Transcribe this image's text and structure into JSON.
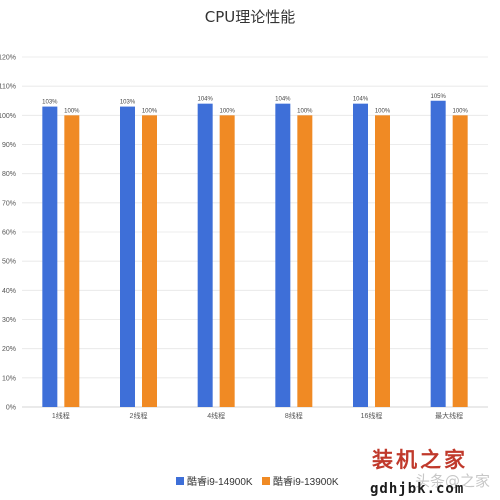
{
  "chart_data": {
    "type": "bar",
    "title": "CPU理论性能",
    "categories": [
      "1线程",
      "2线程",
      "4线程",
      "8线程",
      "16线程",
      "最大线程"
    ],
    "series": [
      {
        "name": "酷睿i9-14900K",
        "values": [
          103,
          103,
          104,
          104,
          104,
          105
        ],
        "labels": [
          "103%",
          "103%",
          "104%",
          "104%",
          "104%",
          "105%"
        ],
        "color": "#3e6fd8"
      },
      {
        "name": "酷睿i9-13900K",
        "values": [
          100,
          100,
          100,
          100,
          100,
          100
        ],
        "labels": [
          "100%",
          "100%",
          "100%",
          "100%",
          "100%",
          "100%"
        ],
        "color": "#f08a24"
      }
    ],
    "ylim": [
      0,
      120
    ],
    "yticks": [
      0,
      10,
      20,
      30,
      40,
      50,
      60,
      70,
      80,
      90,
      100,
      110,
      120
    ],
    "ytick_labels": [
      "0%",
      "10%",
      "20%",
      "30%",
      "40%",
      "50%",
      "60%",
      "70%",
      "80%",
      "90%",
      "100%",
      "110%",
      "120%"
    ],
    "grid": true,
    "legend_position": "bottom-center"
  },
  "watermark": {
    "brand": "装机之家",
    "url": "gdhjbk.com",
    "faint": "头条@之家"
  }
}
